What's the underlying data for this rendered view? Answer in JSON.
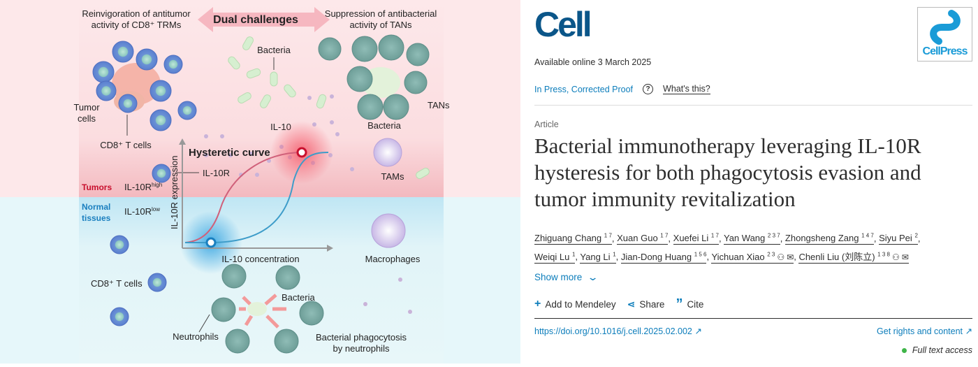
{
  "graphical_abstract": {
    "title_center": "Dual challenges",
    "left_heading": [
      "Reinvigoration of antitumor",
      "activity of CD8⁺ TRMs"
    ],
    "right_heading": [
      "Suppression of antibacterial",
      "activity of TANs"
    ],
    "labels": {
      "bacteria_top": "Bacteria",
      "tumor_cells": [
        "Tumor",
        "cells"
      ],
      "il10r": "IL-10R",
      "il10": "IL-10",
      "cd8_t_cells_top": "CD8⁺ T cells",
      "tans": "TANs",
      "bacteria_tans": "Bacteria",
      "tams": "TAMs",
      "hysteretic_curve": "Hysteretic curve",
      "y_axis": "IL-10R expression",
      "x_axis": "IL-10 concentration",
      "tumors": "Tumors",
      "il10r_high": "IL-10R",
      "high_sup": "high",
      "normal_tissues": [
        "Normal",
        "tissues"
      ],
      "il10r_low": "IL-10R",
      "low_sup": "low",
      "macrophages": "Macrophages",
      "cd8_t_cells_bottom": "CD8⁺ T cells",
      "bacteria_bottom": "Bacteria",
      "neutrophils": "Neutrophils",
      "phagocytosis": [
        "Bacterial phagocytosis",
        "by neutrophils"
      ]
    },
    "colors": {
      "tumor_red": "#c8102e",
      "normal_blue": "#1a7fbf",
      "pink_bg": "#fde8ea",
      "blue_bg": "#e4f6f9"
    }
  },
  "journal": {
    "logo": "Cell",
    "publisher_logo": "CellPress",
    "available_online": "Available online 3 March 2025",
    "status": "In Press, Corrected Proof",
    "help_icon": "question-circle-icon",
    "whats_this": "What's this?"
  },
  "article": {
    "type": "Article",
    "title": "Bacterial immunotherapy leveraging IL-10R hysteresis for both phagocytosis evasion and tumor immunity revitalization",
    "authors": [
      {
        "name": "Zhiguang Chang",
        "aff": "1 7"
      },
      {
        "name": "Xuan Guo",
        "aff": "1 7"
      },
      {
        "name": "Xuefei Li",
        "aff": "1 7"
      },
      {
        "name": "Yan Wang",
        "aff": "2 3 7"
      },
      {
        "name": "Zhongsheng Zang",
        "aff": "1 4 7"
      },
      {
        "name": "Siyu Pei",
        "aff": "2"
      },
      {
        "name": "Weiqi Lu",
        "aff": "1"
      },
      {
        "name": "Yang Li",
        "aff": "1"
      },
      {
        "name": "Jian-Dong Huang",
        "aff": "1 5 6"
      },
      {
        "name": "Yichuan Xiao",
        "aff": "2 3",
        "icons": [
          "person-icon",
          "envelope-icon"
        ]
      },
      {
        "name": "Chenli Liu (刘陈立)",
        "aff": "1 3 8",
        "icons": [
          "person-icon",
          "envelope-icon"
        ]
      }
    ],
    "show_more": "Show more",
    "actions": {
      "mendeley": "Add to Mendeley",
      "share": "Share",
      "cite": "Cite"
    },
    "doi": "https://doi.org/10.1016/j.cell.2025.02.002",
    "rights": "Get rights and content",
    "access": "Full text access",
    "access_color": "#3fb549"
  }
}
